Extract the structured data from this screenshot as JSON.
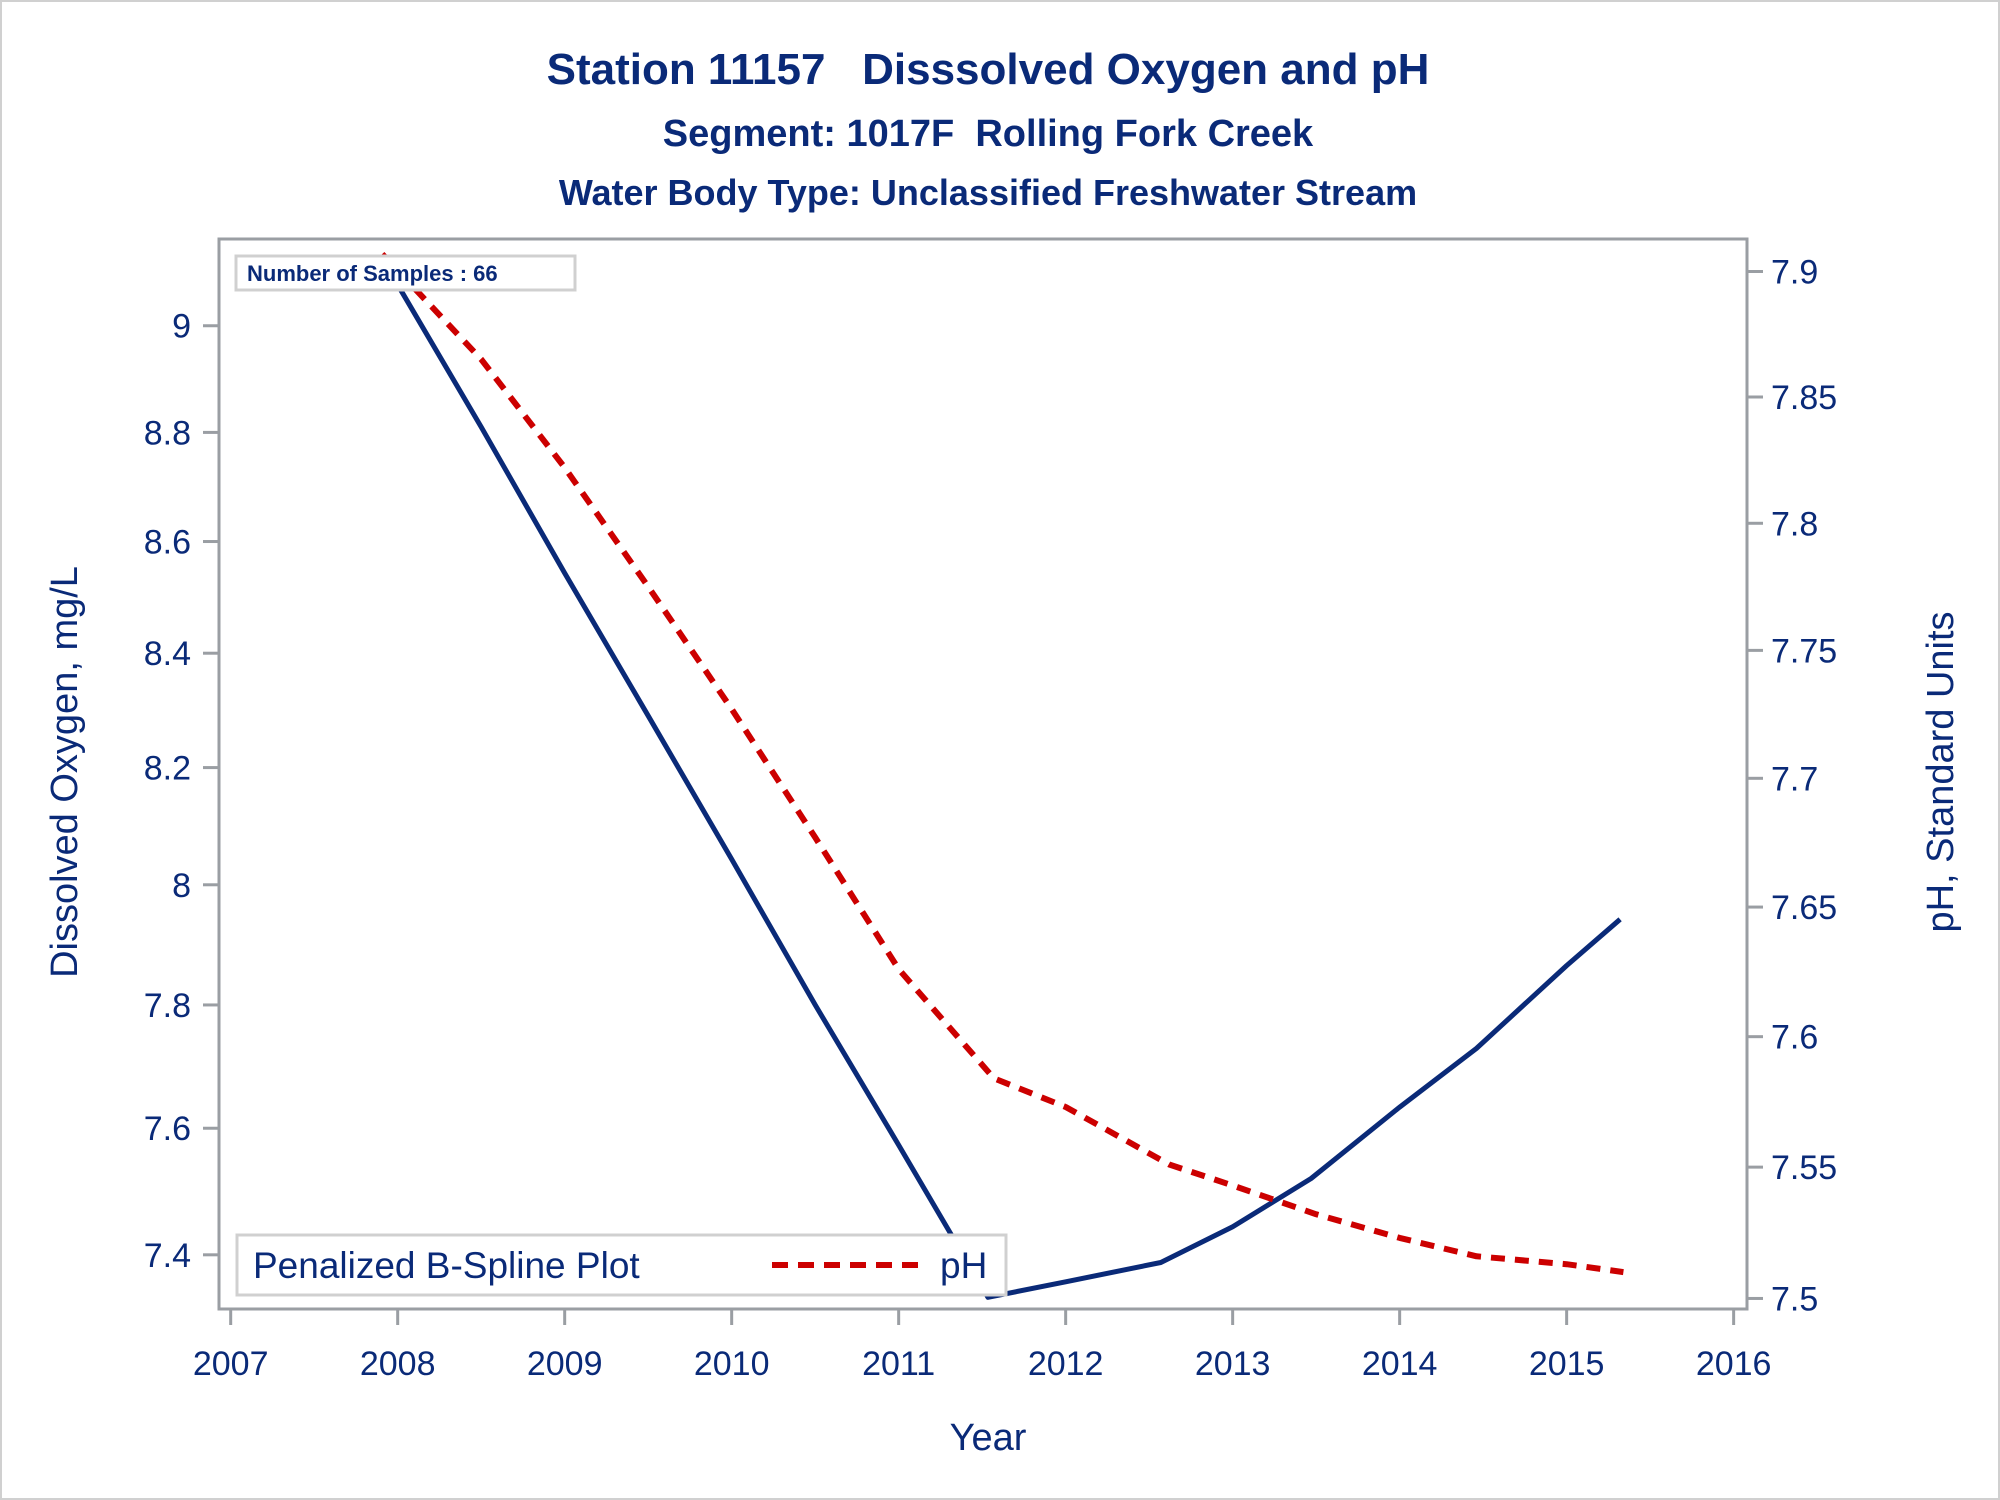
{
  "chart_data": {
    "type": "line",
    "title": "Station 11157   Disssolved Oxygen and pH",
    "subtitles": [
      "Segment: 1017F  Rolling Fork Creek",
      "Water Body Type: Unclassified Freshwater Stream"
    ],
    "xlabel": "Year",
    "ylabel": "Dissolved Oxygen, mg/L",
    "y2label": "pH, Standard Units",
    "x_ticks": [
      "2007",
      "2008",
      "2009",
      "2010",
      "2011",
      "2012",
      "2013",
      "2014",
      "2015",
      "2016"
    ],
    "xlim": [
      2006.93,
      2016.08
    ],
    "y_ticks": [
      9,
      8.8,
      8.6,
      8.4,
      8.2,
      8,
      7.8,
      7.6,
      7.4
    ],
    "y_tick_labels": [
      "9",
      "8.8",
      "8.6",
      "8.4",
      "8.2",
      "8",
      "7.8",
      "7.6",
      "7.4"
    ],
    "ylim": [
      7.316,
      9.166
    ],
    "y_scale": "log",
    "y2_ticks": [
      7.9,
      7.85,
      7.8,
      7.75,
      7.7,
      7.65,
      7.6,
      7.55,
      7.5
    ],
    "y2_tick_labels": [
      "7.9",
      "7.85",
      "7.8",
      "7.75",
      "7.7",
      "7.65",
      "7.6",
      "7.55",
      "7.5"
    ],
    "y2lim": [
      7.496,
      7.913
    ],
    "y2_scale": "log",
    "grid": false,
    "annotation": "Number of Samples : 66",
    "legend": {
      "title": "Penalized B-Spline Plot",
      "entries": [
        "pH"
      ],
      "placement": "bottom-left"
    },
    "series": [
      {
        "name": "Dissolved Oxygen",
        "axis": "left",
        "color": "#0a2a78",
        "style": "solid",
        "points": [
          [
            2007.907,
            9.134
          ],
          [
            2008.0,
            9.078
          ],
          [
            2008.5,
            8.81
          ],
          [
            2009.0,
            8.543
          ],
          [
            2009.5,
            8.29
          ],
          [
            2010.0,
            8.043
          ],
          [
            2010.5,
            7.8
          ],
          [
            2011.0,
            7.573
          ],
          [
            2011.535,
            7.334
          ],
          [
            2012.0,
            7.358
          ],
          [
            2012.57,
            7.388
          ],
          [
            2013.0,
            7.444
          ],
          [
            2013.47,
            7.52
          ],
          [
            2014.0,
            7.634
          ],
          [
            2014.46,
            7.729
          ],
          [
            2015.0,
            7.865
          ],
          [
            2015.32,
            7.942
          ]
        ]
      },
      {
        "name": "pH",
        "axis": "right",
        "color": "#cc0000",
        "style": "dashed",
        "points": [
          [
            2007.907,
            7.907
          ],
          [
            2008.5,
            7.865
          ],
          [
            2009.0,
            7.822
          ],
          [
            2009.5,
            7.775
          ],
          [
            2010.0,
            7.727
          ],
          [
            2010.5,
            7.677
          ],
          [
            2011.0,
            7.626
          ],
          [
            2011.57,
            7.584
          ],
          [
            2012.0,
            7.573
          ],
          [
            2012.62,
            7.551
          ],
          [
            2013.0,
            7.543
          ],
          [
            2013.5,
            7.532
          ],
          [
            2014.0,
            7.523
          ],
          [
            2014.46,
            7.516
          ],
          [
            2015.0,
            7.513
          ],
          [
            2015.34,
            7.51
          ]
        ]
      }
    ]
  },
  "colors": {
    "text": "#0a2a78",
    "do_line": "#0a2a78",
    "ph_line": "#cc0000",
    "axis": "#9a9ea3",
    "box_border": "#d0d0d0"
  }
}
